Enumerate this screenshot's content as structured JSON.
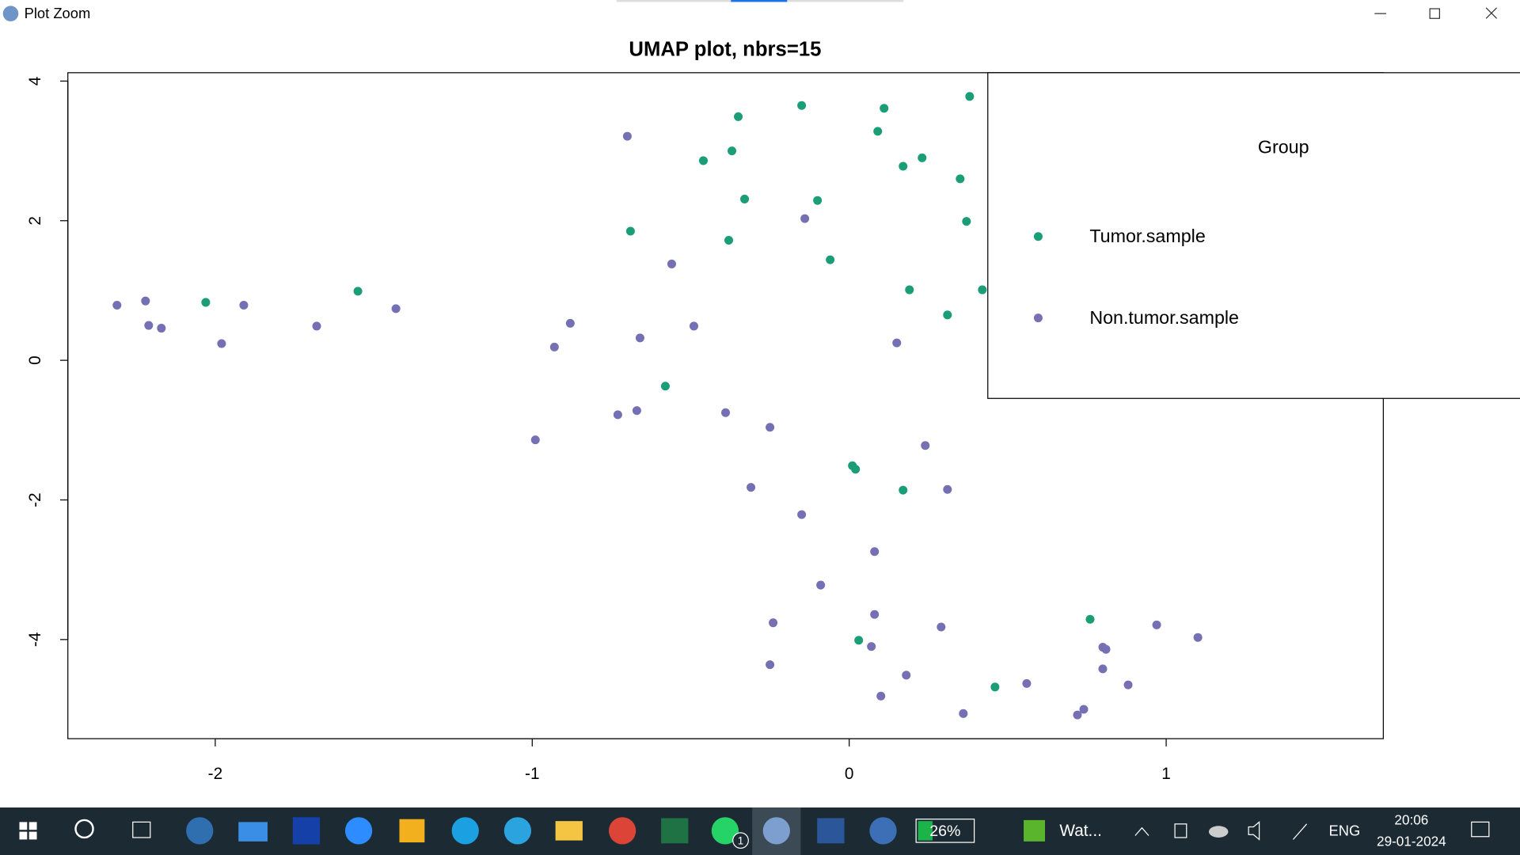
{
  "window": {
    "title": "Plot Zoom"
  },
  "chart_data": {
    "type": "scatter",
    "title": "UMAP plot, nbrs=15",
    "xlim": [
      -2.465,
      1.685
    ],
    "ylim": [
      -5.42,
      4.12
    ],
    "xticks": [
      -2,
      -1,
      0,
      1
    ],
    "yticks": [
      -4,
      -2,
      0,
      2,
      4
    ],
    "legend": "topright",
    "legend_title": "Group",
    "series": [
      {
        "name": "Tumor.sample",
        "color": "#1b9e77",
        "x": [
          -2.03,
          -1.55,
          -0.69,
          -0.58,
          -0.46,
          -0.38,
          -0.37,
          -0.35,
          -0.33,
          -0.15,
          -0.1,
          -0.06,
          0.01,
          0.02,
          0.03,
          0.09,
          0.11,
          0.17,
          0.17,
          0.19,
          0.23,
          0.31,
          0.35,
          0.37,
          0.38,
          0.42,
          0.46,
          0.76
        ],
        "y": [
          0.83,
          0.99,
          1.85,
          -0.37,
          2.86,
          1.72,
          3.0,
          3.49,
          2.31,
          3.65,
          2.29,
          1.44,
          -1.51,
          -1.56,
          -4.01,
          3.28,
          3.61,
          2.78,
          -1.86,
          1.01,
          2.9,
          0.65,
          2.6,
          1.99,
          3.78,
          1.01,
          -4.68,
          -3.71
        ]
      },
      {
        "name": "Non.tumor.sample",
        "color": "#7570b3",
        "x": [
          -2.31,
          -2.22,
          -2.21,
          -2.17,
          -1.98,
          -1.91,
          -1.68,
          -1.43,
          -0.99,
          -0.93,
          -0.88,
          -0.73,
          -0.7,
          -0.67,
          -0.66,
          -0.56,
          -0.49,
          -0.39,
          -0.31,
          -0.25,
          -0.25,
          -0.24,
          -0.15,
          -0.14,
          -0.09,
          0.07,
          0.08,
          0.08,
          0.1,
          0.15,
          0.18,
          0.24,
          0.29,
          0.31,
          0.36,
          0.56,
          0.72,
          0.74,
          0.8,
          0.81,
          0.8,
          0.88,
          0.97,
          1.1
        ],
        "y": [
          0.79,
          0.85,
          0.5,
          0.46,
          0.24,
          0.79,
          0.49,
          0.74,
          -1.14,
          0.19,
          0.53,
          -0.78,
          3.21,
          -0.72,
          0.32,
          1.38,
          0.49,
          -0.75,
          -1.82,
          -4.36,
          -0.96,
          -3.76,
          -2.21,
          2.03,
          -3.22,
          -4.1,
          -3.64,
          -2.74,
          -4.81,
          0.25,
          -4.51,
          -1.22,
          -3.82,
          -1.85,
          -5.06,
          -4.63,
          -5.08,
          -5.0,
          -4.11,
          -4.14,
          -4.42,
          -4.65,
          -3.79,
          -3.97
        ]
      }
    ]
  },
  "taskbar": {
    "battery": "26%",
    "app": "Wat...",
    "whatsapp_badge": "1",
    "language": "ENG",
    "time": "20:06",
    "date": "29-01-2024"
  }
}
